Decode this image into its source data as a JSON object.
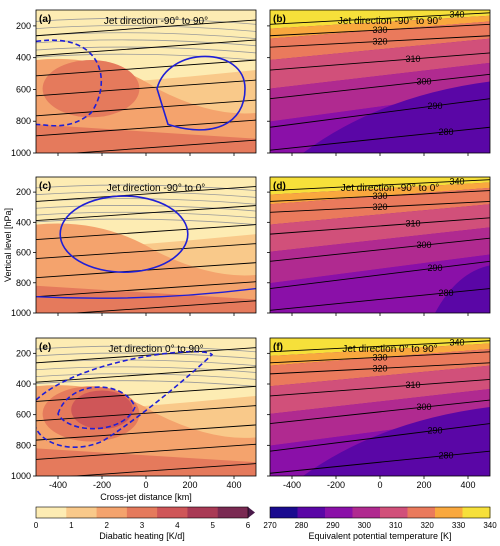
{
  "chart_data": [
    {
      "type": "heatmap",
      "panel": "(a)",
      "title": "Jet direction -90° to 90°",
      "field": "Diabatic heating"
    },
    {
      "type": "heatmap",
      "panel": "(b)",
      "title": "Jet direction -90° to 90°",
      "field": "Equivalent potential temperature",
      "contour_labels": [
        "340",
        "330",
        "320",
        "310",
        "300",
        "290",
        "280"
      ]
    },
    {
      "type": "heatmap",
      "panel": "(c)",
      "title": "Jet direction -90° to 0°",
      "field": "Diabatic heating"
    },
    {
      "type": "heatmap",
      "panel": "(d)",
      "title": "Jet direction -90° to 0°",
      "field": "Equivalent potential temperature",
      "contour_labels": [
        "340",
        "330",
        "320",
        "310",
        "300",
        "290",
        "280"
      ]
    },
    {
      "type": "heatmap",
      "panel": "(e)",
      "title": "Jet direction 0° to 90°",
      "field": "Diabatic heating"
    },
    {
      "type": "heatmap",
      "panel": "(f)",
      "title": "Jet direction 0° to 90°",
      "field": "Equivalent potential temperature",
      "contour_labels": [
        "340",
        "330",
        "320",
        "310",
        "300",
        "290",
        "280"
      ]
    }
  ],
  "axes": {
    "xlabel": "Cross-jet distance [km]",
    "ylabel": "Vertical level [hPa]",
    "xticks": [
      "-400",
      "-200",
      "0",
      "200",
      "400"
    ],
    "yticks": [
      "200",
      "400",
      "600",
      "800",
      "1000"
    ]
  },
  "colorbar_heating": {
    "label": "Diabatic heating [K/d]",
    "ticks": [
      "0",
      "1",
      "2",
      "3",
      "4",
      "5",
      "6"
    ],
    "colors": [
      "#fdecb3",
      "#f9c98a",
      "#f4a36d",
      "#e57a5c",
      "#cf5658",
      "#a93a55",
      "#7a2a52",
      "#4a1a4a"
    ]
  },
  "colorbar_theta": {
    "label": "Equivalent potential temperature [K]",
    "ticks": [
      "270",
      "280",
      "290",
      "300",
      "310",
      "320",
      "330",
      "340"
    ],
    "colors": [
      "#1a0b8f",
      "#5a06a6",
      "#8a10a8",
      "#b02a90",
      "#d1507a",
      "#ea7a5c",
      "#f9a83e",
      "#f6e03a"
    ]
  }
}
